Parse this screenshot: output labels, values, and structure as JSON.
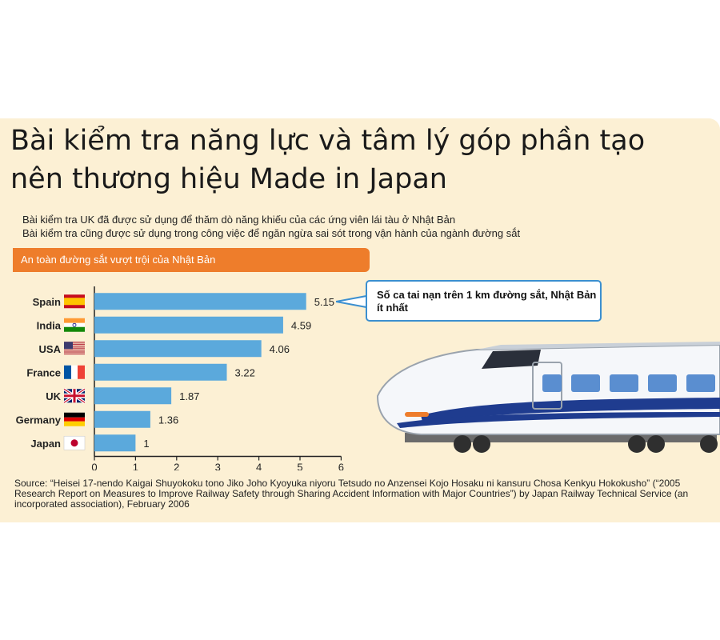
{
  "header": {
    "title_line1": "Bài kiểm tra năng lực và tâm lý góp phần tạo",
    "title_line2": "nên thương hiệu Made in Japan",
    "subtitle_line1": "Bài kiểm tra UK đã được sử dụng để thăm dò năng khiếu của các ứng viên lái tàu ở Nhật Bản",
    "subtitle_line2": "Bài kiểm tra cũng được sử dụng trong công việc để ngăn ngừa sai sót trong vận hành của ngành đường sắt"
  },
  "banner": {
    "label": "An toàn đường sắt vượt trội của Nhật Bản"
  },
  "callout": {
    "text": "Số ca tai nạn trên 1 km đường sắt, Nhật Bản ít nhất"
  },
  "source": {
    "text": "Source: “Heisei 17-nendo Kaigai Shuyokoku tono Jiko Joho Kyoyuka niyoru Tetsudo no Anzensei Kojo Hosaku ni kansuru Chosa Kenkyu Hokokusho” (“2005 Research Report on Measures to Improve Railway Safety through Sharing Accident Information with Major Countries”) by Japan Railway Technical Service (an incorporated association), February 2006"
  },
  "colors": {
    "panel": "#fcf0d4",
    "bar": "#5ba9dc",
    "banner": "#ee7d2b",
    "callout_border": "#3b8fd0"
  },
  "icons": [
    "flag-spain-icon",
    "flag-india-icon",
    "flag-usa-icon",
    "flag-france-icon",
    "flag-uk-icon",
    "flag-germany-icon",
    "flag-japan-icon",
    "shinkansen-train-illustration"
  ],
  "chart_data": {
    "type": "bar",
    "orientation": "horizontal",
    "categories": [
      "Spain",
      "India",
      "USA",
      "France",
      "UK",
      "Germany",
      "Japan"
    ],
    "values": [
      5.15,
      4.59,
      4.06,
      3.22,
      1.87,
      1.36,
      1
    ],
    "value_labels": [
      "5.15",
      "4.59",
      "4.06",
      "3.22",
      "1.87",
      "1.36",
      "1"
    ],
    "x_ticks": [
      0,
      1,
      2,
      3,
      4,
      5,
      6
    ],
    "xlim": [
      0,
      6
    ],
    "grid": false,
    "legend": false,
    "title": "",
    "xlabel": "",
    "ylabel": ""
  }
}
